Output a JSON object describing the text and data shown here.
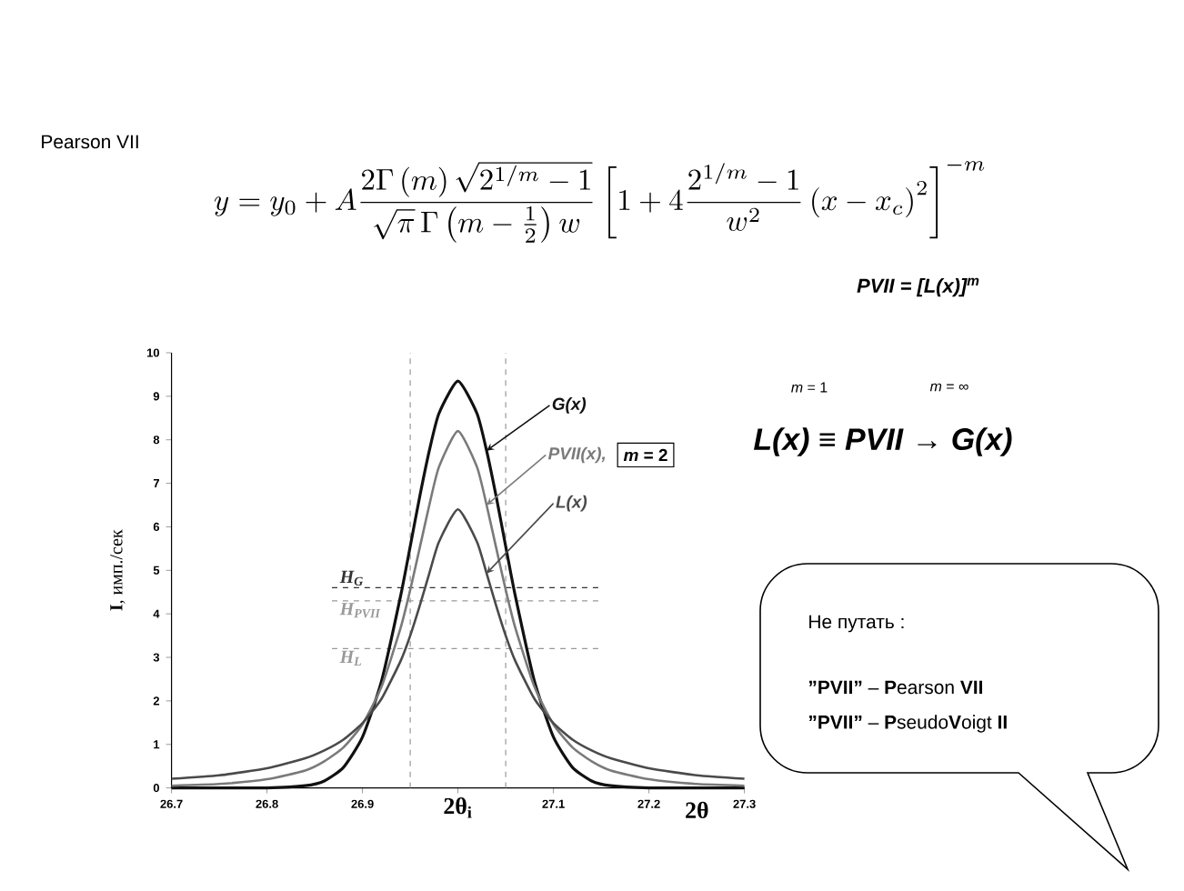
{
  "chart_data": {
    "type": "line",
    "title": "Pearson VII",
    "xlabel": "2θ",
    "ylabel": "**I**, имп./сек",
    "x": [
      26.7,
      26.75,
      26.8,
      26.84,
      26.86,
      26.88,
      26.9,
      26.92,
      26.94,
      26.95,
      26.96,
      26.97,
      26.98,
      27.0,
      27.02,
      27.03,
      27.04,
      27.05,
      27.06,
      27.08,
      27.1,
      27.12,
      27.14,
      27.16,
      27.2,
      27.25,
      27.3
    ],
    "series": [
      {
        "name": "G(x)",
        "color": "#111111",
        "values": [
          0,
          0,
          0,
          0.05,
          0.16,
          0.47,
          1.17,
          2.46,
          4.42,
          5.55,
          6.7,
          7.75,
          8.6,
          9.35,
          8.6,
          7.75,
          6.7,
          5.55,
          4.42,
          2.46,
          1.17,
          0.47,
          0.16,
          0.05,
          0,
          0,
          0
        ]
      },
      {
        "name": "PVII(x),",
        "color": "#7a7a7a",
        "values": [
          0.05,
          0.09,
          0.2,
          0.4,
          0.61,
          0.93,
          1.46,
          2.33,
          3.68,
          4.55,
          5.52,
          6.5,
          7.37,
          8.2,
          7.37,
          6.5,
          5.52,
          4.55,
          3.68,
          2.33,
          1.46,
          0.93,
          0.61,
          0.4,
          0.2,
          0.09,
          0.05
        ]
      },
      {
        "name": "L(x)",
        "color": "#4a4a4a",
        "values": [
          0.21,
          0.29,
          0.45,
          0.68,
          0.86,
          1.11,
          1.49,
          2.05,
          2.92,
          3.5,
          4.19,
          4.93,
          5.65,
          6.4,
          5.65,
          4.93,
          4.19,
          3.5,
          2.92,
          2.05,
          1.49,
          1.11,
          0.86,
          0.68,
          0.45,
          0.29,
          0.21
        ]
      }
    ],
    "xlim": [
      26.7,
      27.3
    ],
    "ylim": [
      0,
      10
    ],
    "xticks": [
      26.7,
      26.8,
      26.9,
      {
        "value": 27.0,
        "label": null
      },
      27.1,
      27.2,
      27.3
    ],
    "yticks": [
      0,
      1,
      2,
      3,
      4,
      5,
      6,
      7,
      8,
      9,
      10
    ],
    "ref_lines": [
      {
        "axis": "x",
        "value": 26.95,
        "color": "#999999",
        "line_style": "dashed"
      },
      {
        "axis": "x",
        "value": 27.05,
        "color": "#999999",
        "line_style": "dashed"
      },
      {
        "axis": "y",
        "value": 4.6,
        "label": "H$_{G}$",
        "color": "#333333",
        "line_style": "dashed"
      },
      {
        "axis": "y",
        "value": 4.3,
        "label": "H$_{PVII}$",
        "color": "#999999",
        "line_style": "dashed"
      },
      {
        "axis": "y",
        "value": 3.2,
        "label": "H$_{L}$",
        "color": "#999999",
        "line_style": "dashed"
      }
    ],
    "annotations": [
      "y = y_0 + A\\frac{2\\Gamma\\left(m\\right)\\sqrt{2^{1/m}-1}}{\\sqrt{\\pi}\\,\\Gamma\\left(m-\\frac{1}{2}\\right)w}\\left[1+4\\frac{2^{1/m}-1}{w^2}\\left(x-x_c\\right)^2\\right]^{-m}",
      "PVII = [L(x)]$^{m}$",
      "*m* = 1",
      "*m* = ∞",
      "L(x) ≡ PVII → G(x)",
      "Не путать :",
      "**”PVII”** – **P**earson **VII**",
      "**”PVII”** – **P**seudo**V**oigt **II**",
      "*m* = 2",
      "2θ$_{i}$"
    ]
  }
}
